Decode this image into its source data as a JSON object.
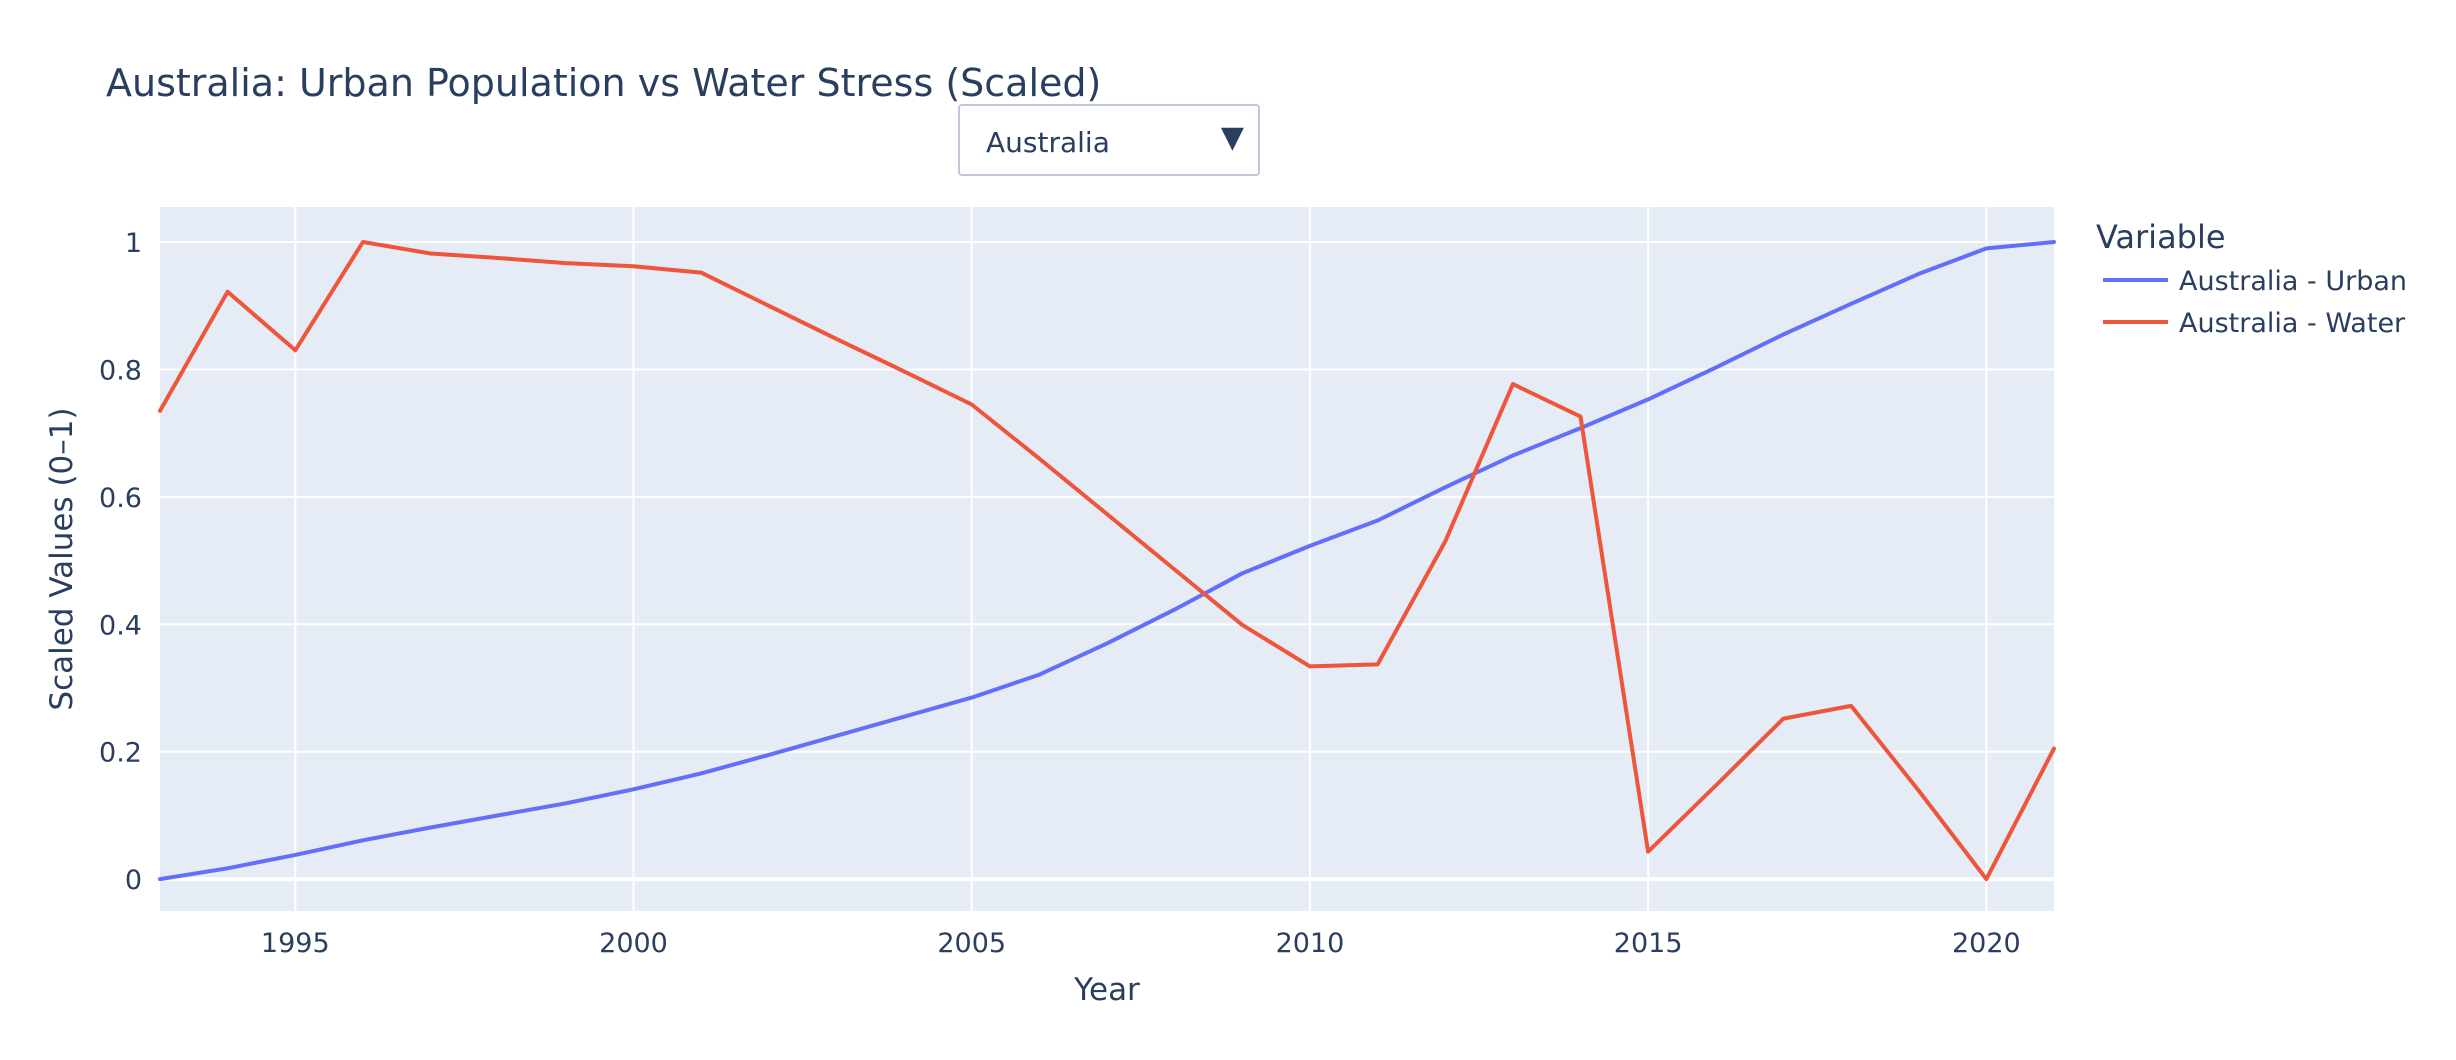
{
  "chart_data": {
    "type": "line",
    "title": "Australia: Urban Population vs Water Stress (Scaled)",
    "xlabel": "Year",
    "ylabel": "Scaled Values (0–1)",
    "xlim": [
      1993,
      2021
    ],
    "ylim": [
      -0.05,
      1.055
    ],
    "x_ticks": [
      1995,
      2000,
      2005,
      2010,
      2015,
      2020
    ],
    "y_ticks": [
      0,
      0.2,
      0.4,
      0.6,
      0.8,
      1
    ],
    "y_tick_labels": [
      "0",
      "0.2",
      "0.4",
      "0.6",
      "0.8",
      "1"
    ],
    "grid": true,
    "legend_title": "Variable",
    "legend_position": "right",
    "plot_background": "#e5ecf6",
    "series": [
      {
        "name": "Australia - Urban",
        "color": "#636efa",
        "x": [
          1993,
          1994,
          1995,
          1996,
          1997,
          1998,
          1999,
          2000,
          2001,
          2002,
          2003,
          2004,
          2005,
          2006,
          2007,
          2008,
          2009,
          2010,
          2011,
          2012,
          2013,
          2014,
          2015,
          2016,
          2017,
          2018,
          2019,
          2020,
          2021
        ],
        "y": [
          0,
          0.017,
          0.038,
          0.061,
          0.081,
          0.1,
          0.119,
          0.141,
          0.166,
          0.195,
          0.225,
          0.255,
          0.285,
          0.321,
          0.37,
          0.423,
          0.48,
          0.523,
          0.563,
          0.615,
          0.665,
          0.708,
          0.753,
          0.803,
          0.855,
          0.903,
          0.95,
          0.99,
          1
        ]
      },
      {
        "name": "Australia - Water",
        "color": "#ef553b",
        "x": [
          1993,
          1994,
          1995,
          1996,
          1997,
          1998,
          1999,
          2000,
          2001,
          2002,
          2003,
          2004,
          2005,
          2006,
          2007,
          2008,
          2009,
          2010,
          2011,
          2012,
          2013,
          2014,
          2015,
          2016,
          2017,
          2018,
          2019,
          2020,
          2021
        ],
        "y": [
          0.735,
          0.922,
          0.83,
          1,
          0.982,
          0.975,
          0.967,
          0.962,
          0.952,
          0.9,
          0.848,
          0.797,
          0.745,
          0.66,
          0.573,
          0.486,
          0.399,
          0.334,
          0.337,
          0.53,
          0.777,
          0.726,
          0.043,
          0.147,
          0.252,
          0.272,
          0.139,
          0,
          0.205
        ]
      }
    ]
  },
  "dropdown": {
    "selected": "Australia",
    "arrow_icon": "triangle-down-icon"
  }
}
